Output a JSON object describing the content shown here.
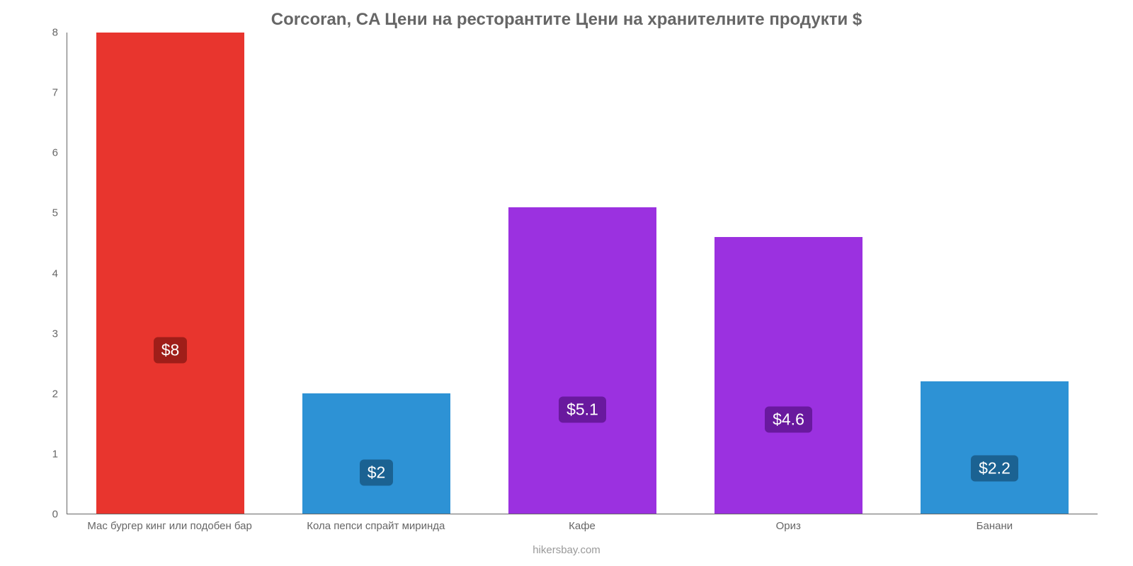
{
  "chart": {
    "type": "bar",
    "title": "Corcoran, CA Цени на ресторантите Цени на хранителните продукти $",
    "title_color": "#666666",
    "title_fontsize": 24,
    "background_color": "#ffffff",
    "axis_color": "#666666",
    "ylim": [
      0,
      8
    ],
    "yticks": [
      0,
      1,
      2,
      3,
      4,
      5,
      6,
      7,
      8
    ],
    "ytick_color": "#666666",
    "ytick_fontsize": 15,
    "xtick_color": "#666666",
    "xtick_fontsize": 15,
    "bar_width_ratio": 0.72,
    "value_label_fontsize": 23,
    "value_label_text_color": "#ffffff",
    "value_label_radius": 6,
    "value_label_vpos_ratio": 0.34,
    "categories": [
      "Мас бургер кинг или подобен бар",
      "Кола пепси спрайт миринда",
      "Кафе",
      "Ориз",
      "Банани"
    ],
    "values": [
      8,
      2,
      5.1,
      4.6,
      2.2
    ],
    "display_values": [
      "$8",
      "$2",
      "$5.1",
      "$4.6",
      "$2.2"
    ],
    "bar_colors": [
      "#e8352e",
      "#2d92d5",
      "#9b31e0",
      "#9b31e0",
      "#2d92d5"
    ],
    "label_bg_colors": [
      "#9f1e19",
      "#1b6292",
      "#69199e",
      "#69199e",
      "#1b6292"
    ],
    "footer": "hikersbay.com",
    "footer_color": "#999999",
    "footer_fontsize": 15
  }
}
